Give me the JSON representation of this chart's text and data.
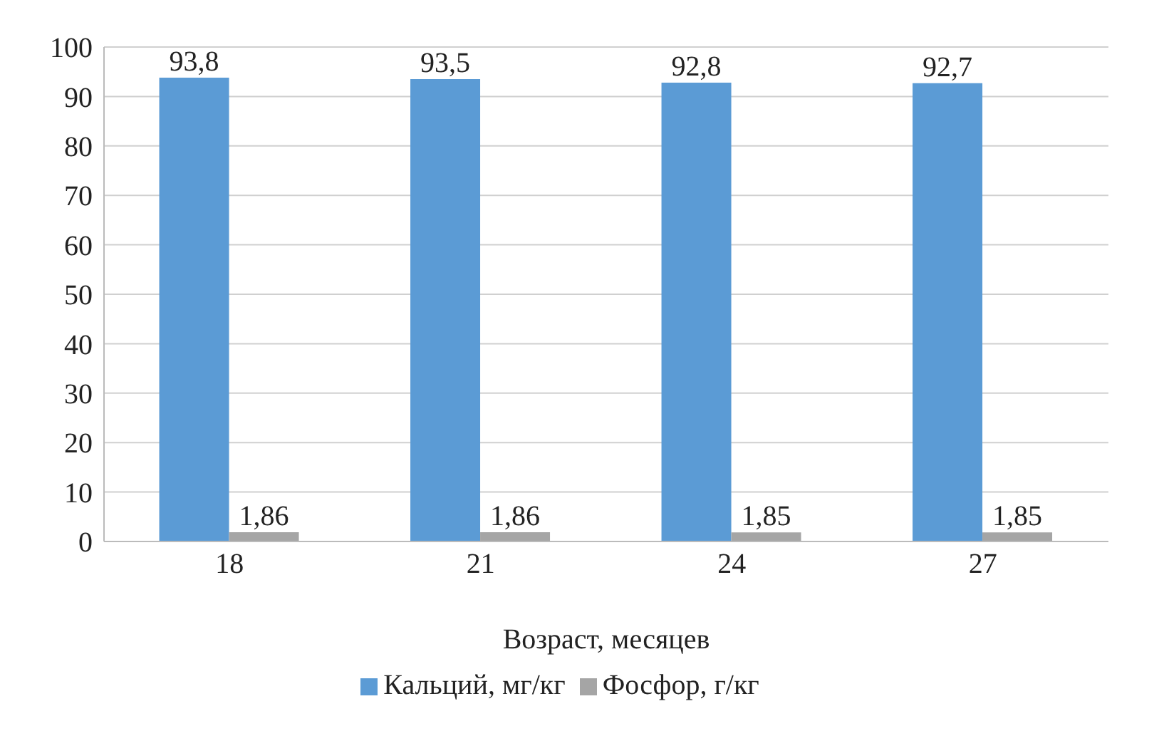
{
  "chart_data": {
    "type": "bar",
    "xlabel": "Возраст, месяцев",
    "categories": [
      "18",
      "21",
      "24",
      "27"
    ],
    "series": [
      {
        "name": "Кальций, мг/кг",
        "color": "#5b9bd5",
        "values": [
          93.8,
          93.5,
          92.8,
          92.7
        ],
        "value_labels": [
          "93,8",
          "93,5",
          "92,8",
          "92,7"
        ]
      },
      {
        "name": "Фосфор, г/кг",
        "color": "#a5a5a5",
        "values": [
          1.86,
          1.86,
          1.85,
          1.85
        ],
        "value_labels": [
          "1,86",
          "1,86",
          "1,85",
          "1,85"
        ]
      }
    ],
    "ylim": [
      0,
      100
    ],
    "yticks": [
      0,
      10,
      20,
      30,
      40,
      50,
      60,
      70,
      80,
      90,
      100
    ],
    "grid": "y",
    "legend": "bottom"
  }
}
